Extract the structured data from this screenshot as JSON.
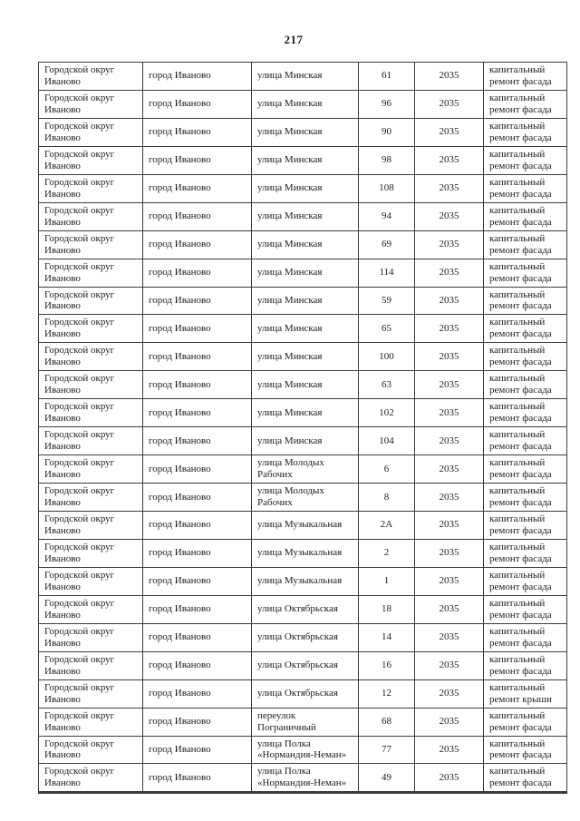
{
  "page": {
    "number": "217"
  },
  "colors": {
    "background": "#ffffff",
    "border": "#3c3c3c",
    "text": "#1c1c1c"
  },
  "table": {
    "columns": [
      "district",
      "city",
      "street",
      "house",
      "year",
      "work"
    ],
    "rows": [
      {
        "district": "Городской округ Иваново",
        "city": "город Иваново",
        "street": "улица Минская",
        "house": "61",
        "year": "2035",
        "work": "капитальный ремонт фасада"
      },
      {
        "district": "Городской округ Иваново",
        "city": "город Иваново",
        "street": "улица Минская",
        "house": "96",
        "year": "2035",
        "work": "капитальный ремонт фасада"
      },
      {
        "district": "Городской округ Иваново",
        "city": "город Иваново",
        "street": "улица Минская",
        "house": "90",
        "year": "2035",
        "work": "капитальный ремонт фасада"
      },
      {
        "district": "Городской округ Иваново",
        "city": "город Иваново",
        "street": "улица Минская",
        "house": "98",
        "year": "2035",
        "work": "капитальный ремонт фасада"
      },
      {
        "district": "Городской округ Иваново",
        "city": "город Иваново",
        "street": "улица Минская",
        "house": "108",
        "year": "2035",
        "work": "капитальный ремонт фасада"
      },
      {
        "district": "Городской округ Иваново",
        "city": "город Иваново",
        "street": "улица Минская",
        "house": "94",
        "year": "2035",
        "work": "капитальный ремонт фасада"
      },
      {
        "district": "Городской округ Иваново",
        "city": "город Иваново",
        "street": "улица Минская",
        "house": "69",
        "year": "2035",
        "work": "капитальный ремонт фасада"
      },
      {
        "district": "Городской округ Иваново",
        "city": "город Иваново",
        "street": "улица Минская",
        "house": "114",
        "year": "2035",
        "work": "капитальный ремонт фасада"
      },
      {
        "district": "Городской округ Иваново",
        "city": "город Иваново",
        "street": "улица Минская",
        "house": "59",
        "year": "2035",
        "work": "капитальный ремонт фасада"
      },
      {
        "district": "Городской округ Иваново",
        "city": "город Иваново",
        "street": "улица Минская",
        "house": "65",
        "year": "2035",
        "work": "капитальный ремонт фасада"
      },
      {
        "district": "Городской округ Иваново",
        "city": "город Иваново",
        "street": "улица Минская",
        "house": "100",
        "year": "2035",
        "work": "капитальный ремонт фасада"
      },
      {
        "district": "Городской округ Иваново",
        "city": "город Иваново",
        "street": "улица Минская",
        "house": "63",
        "year": "2035",
        "work": "капитальный ремонт фасада"
      },
      {
        "district": "Городской округ Иваново",
        "city": "город Иваново",
        "street": "улица Минская",
        "house": "102",
        "year": "2035",
        "work": "капитальный ремонт фасада"
      },
      {
        "district": "Городской округ Иваново",
        "city": "город Иваново",
        "street": "улица Минская",
        "house": "104",
        "year": "2035",
        "work": "капитальный ремонт фасада"
      },
      {
        "district": "Городской округ Иваново",
        "city": "город Иваново",
        "street": "улица Молодых Рабочих",
        "house": "6",
        "year": "2035",
        "work": "капитальный ремонт фасада"
      },
      {
        "district": "Городской округ Иваново",
        "city": "город Иваново",
        "street": "улица Молодых Рабочих",
        "house": "8",
        "year": "2035",
        "work": "капитальный ремонт фасада"
      },
      {
        "district": "Городской округ Иваново",
        "city": "город Иваново",
        "street": "улица Музыкальная",
        "house": "2А",
        "year": "2035",
        "work": "капитальный ремонт фасада"
      },
      {
        "district": "Городской округ Иваново",
        "city": "город Иваново",
        "street": "улица Музыкальная",
        "house": "2",
        "year": "2035",
        "work": "капитальный ремонт фасада"
      },
      {
        "district": "Городской округ Иваново",
        "city": "город Иваново",
        "street": "улица Музыкальная",
        "house": "1",
        "year": "2035",
        "work": "капитальный ремонт фасада"
      },
      {
        "district": "Городской округ Иваново",
        "city": "город Иваново",
        "street": "улица Октябрьская",
        "house": "18",
        "year": "2035",
        "work": "капитальный ремонт фасада"
      },
      {
        "district": "Городской округ Иваново",
        "city": "город Иваново",
        "street": "улица Октябрьская",
        "house": "14",
        "year": "2035",
        "work": "капитальный ремонт фасада"
      },
      {
        "district": "Городской округ Иваново",
        "city": "город Иваново",
        "street": "улица Октябрьская",
        "house": "16",
        "year": "2035",
        "work": "капитальный ремонт фасада"
      },
      {
        "district": "Городской округ Иваново",
        "city": "город Иваново",
        "street": "улица Октябрьская",
        "house": "12",
        "year": "2035",
        "work": "капитальный ремонт крыши"
      },
      {
        "district": "Городской округ Иваново",
        "city": "город Иваново",
        "street": "переулок Пограничный",
        "house": "68",
        "year": "2035",
        "work": "капитальный ремонт фасада"
      },
      {
        "district": "Городской округ Иваново",
        "city": "город Иваново",
        "street": "улица Полка «Нормандия-Неман»",
        "house": "77",
        "year": "2035",
        "work": "капитальный ремонт фасада"
      },
      {
        "district": "Городской округ Иваново",
        "city": "город Иваново",
        "street": "улица Полка «Нормандия-Неман»",
        "house": "49",
        "year": "2035",
        "work": "капитальный ремонт фасада"
      }
    ]
  }
}
